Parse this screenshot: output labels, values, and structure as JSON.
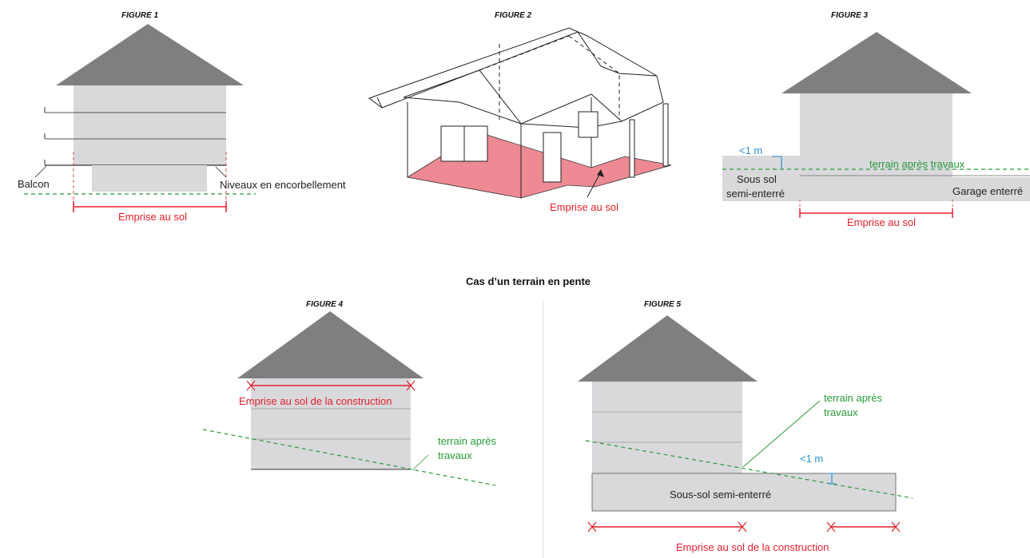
{
  "section_title": "Cas d’un terrain en pente",
  "colors": {
    "roof": "#7f7f82",
    "wall": "#d9d9dc",
    "red": "#e0202c",
    "green": "#2a9a3a",
    "blue": "#2a8fd0",
    "footprint_fill": "#ee8a93"
  },
  "figure1": {
    "title": "FIGURE 1",
    "balcon": "Balcon",
    "niveaux": "Niveaux en encorbellement",
    "emprise": "Emprise au sol"
  },
  "figure2": {
    "title": "FIGURE 2",
    "emprise": "Emprise au sol"
  },
  "figure3": {
    "title": "FIGURE 3",
    "lt1m": "<1 m",
    "terrain": "terrain après travaux",
    "sous_sol_1": "Sous sol",
    "sous_sol_2": "semi-enterré",
    "garage": "Garage enterré",
    "emprise": "Emprise au sol"
  },
  "figure4": {
    "title": "FIGURE 4",
    "emprise": "Emprise au sol de la construction",
    "terrain_1": "terrain après",
    "terrain_2": "travaux"
  },
  "figure5": {
    "title": "FIGURE 5",
    "terrain_1": "terrain après",
    "terrain_2": "travaux",
    "lt1m": "<1 m",
    "sous_sol": "Sous-sol semi-enterré",
    "emprise": "Emprise au sol de la construction"
  }
}
